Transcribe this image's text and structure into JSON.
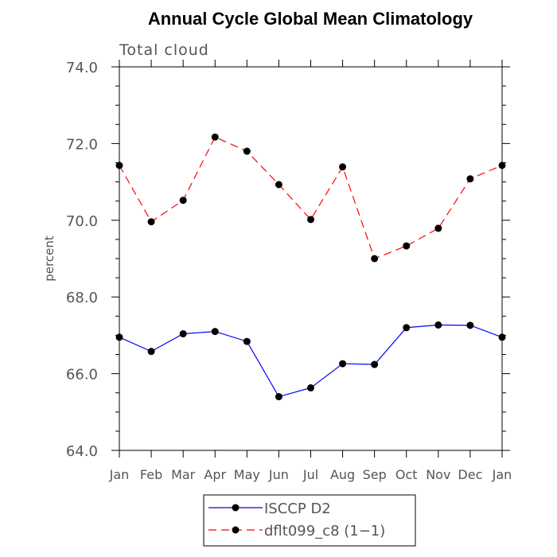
{
  "chart_data": {
    "type": "line",
    "title": "Annual Cycle Global Mean Climatology",
    "subtitle": "Total cloud",
    "xlabel": "",
    "ylabel": "percent",
    "ylim": [
      64.0,
      74.0
    ],
    "yticks": [
      "64.0",
      "66.0",
      "68.0",
      "70.0",
      "72.0",
      "74.0"
    ],
    "ytick_values": [
      64,
      66,
      68,
      70,
      72,
      74
    ],
    "categories": [
      "Jan",
      "Feb",
      "Mar",
      "Apr",
      "May",
      "Jun",
      "Jul",
      "Aug",
      "Sep",
      "Oct",
      "Nov",
      "Dec",
      "Jan"
    ],
    "series": [
      {
        "name": "ISCCP D2",
        "color": "#0000ff",
        "dash": "solid",
        "values": [
          66.95,
          66.58,
          67.04,
          67.1,
          66.84,
          65.4,
          65.63,
          66.26,
          66.24,
          67.2,
          67.27,
          67.26,
          66.95
        ]
      },
      {
        "name": "dflt099_c8 (1-1)",
        "color": "#ff0000",
        "dash": "dashed",
        "values": [
          71.43,
          69.96,
          70.52,
          72.17,
          71.8,
          70.93,
          70.02,
          71.39,
          69.0,
          69.33,
          69.79,
          71.08,
          71.43
        ]
      }
    ],
    "legend": {
      "placement": "bottom-center",
      "entries": [
        "ISCCP D2",
        "dflt099_c8 (1−1)"
      ]
    },
    "grid": false
  }
}
